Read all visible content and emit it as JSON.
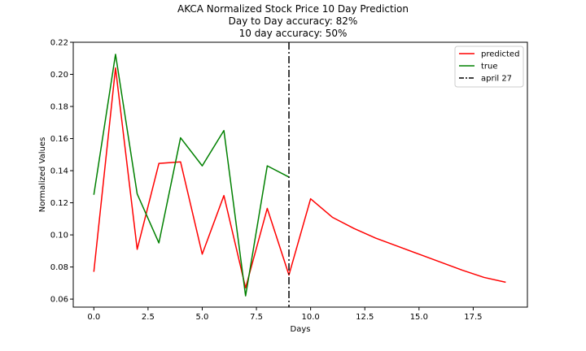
{
  "chart_data": {
    "type": "line",
    "title": "AKCA Normalized Stock Price 10 Day Prediction",
    "subtitle_1": "Day to Day accuracy: 82%",
    "subtitle_2": "10 day accuracy: 50%",
    "xlabel": "Days",
    "ylabel": "Normalized Values",
    "xlim": [
      -0.95,
      20.0
    ],
    "ylim": [
      0.055,
      0.22
    ],
    "x_ticks": [
      0.0,
      2.5,
      5.0,
      7.5,
      10.0,
      12.5,
      15.0,
      17.5
    ],
    "x_tick_labels": [
      "0.0",
      "2.5",
      "5.0",
      "7.5",
      "10.0",
      "12.5",
      "15.0",
      "17.5"
    ],
    "y_ticks": [
      0.06,
      0.08,
      0.1,
      0.12,
      0.14,
      0.16,
      0.18,
      0.2,
      0.22
    ],
    "y_tick_labels": [
      "0.06",
      "0.08",
      "0.10",
      "0.12",
      "0.14",
      "0.16",
      "0.18",
      "0.20",
      "0.22"
    ],
    "grid": false,
    "legend_position": "top-right",
    "series": [
      {
        "name": "predicted",
        "color": "#ff0000",
        "x": [
          0,
          1,
          2,
          3,
          4,
          5,
          6,
          7,
          8,
          9,
          10,
          11,
          12,
          13,
          14,
          15,
          16,
          17,
          18,
          19
        ],
        "values": [
          0.077,
          0.204,
          0.091,
          0.1445,
          0.1455,
          0.088,
          0.1245,
          0.067,
          0.1165,
          0.075,
          0.1225,
          0.111,
          0.104,
          0.098,
          0.093,
          0.088,
          0.083,
          0.078,
          0.0735,
          0.0705
        ]
      },
      {
        "name": "true",
        "color": "#008000",
        "x": [
          0,
          1,
          2,
          3,
          4,
          5,
          6,
          7,
          8,
          9
        ],
        "values": [
          0.125,
          0.2125,
          0.1255,
          0.095,
          0.1605,
          0.143,
          0.165,
          0.062,
          0.143,
          0.136
        ]
      }
    ],
    "vline": {
      "name": "april 27",
      "x": 9,
      "color": "#000000",
      "style": "dash-dot"
    }
  }
}
